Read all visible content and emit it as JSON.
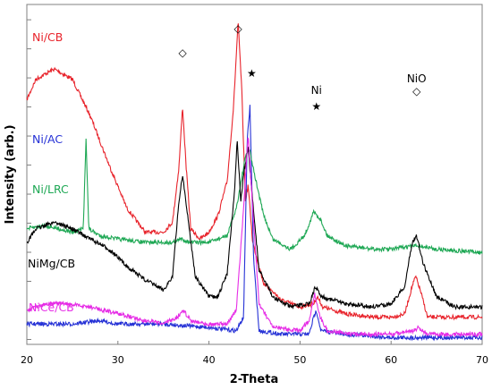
{
  "chart_data": {
    "type": "line",
    "xlabel": "2-Theta",
    "ylabel": "Intensity (arb.)",
    "xlim": [
      20,
      70
    ],
    "xticks": [
      "20",
      "30",
      "40",
      "50",
      "60",
      "70"
    ],
    "y_ticks_labeled": false,
    "legend": "none (labels placed next to each curve)",
    "series": [
      {
        "name": "Ni/CB",
        "color": "#e8242c",
        "points": [
          [
            20,
            0.28
          ],
          [
            21,
            0.22
          ],
          [
            23,
            0.19
          ],
          [
            25,
            0.22
          ],
          [
            27,
            0.33
          ],
          [
            29,
            0.47
          ],
          [
            31,
            0.6
          ],
          [
            33,
            0.67
          ],
          [
            35,
            0.67
          ],
          [
            36,
            0.64
          ],
          [
            36.7,
            0.48
          ],
          [
            37.1,
            0.3
          ],
          [
            37.5,
            0.48
          ],
          [
            38,
            0.66
          ],
          [
            39,
            0.69
          ],
          [
            40,
            0.67
          ],
          [
            41,
            0.62
          ],
          [
            42,
            0.52
          ],
          [
            42.7,
            0.3
          ],
          [
            43.2,
            0.05
          ],
          [
            43.6,
            0.25
          ],
          [
            44.0,
            0.58
          ],
          [
            44.3,
            0.53
          ],
          [
            44.8,
            0.7
          ],
          [
            46,
            0.82
          ],
          [
            48,
            0.87
          ],
          [
            50,
            0.89
          ],
          [
            51.5,
            0.88
          ],
          [
            51.9,
            0.86
          ],
          [
            52.5,
            0.89
          ],
          [
            55,
            0.91
          ],
          [
            58,
            0.92
          ],
          [
            60,
            0.92
          ],
          [
            61.5,
            0.91
          ],
          [
            62.3,
            0.83
          ],
          [
            62.7,
            0.8
          ],
          [
            63.2,
            0.84
          ],
          [
            64,
            0.92
          ],
          [
            67,
            0.92
          ],
          [
            70,
            0.92
          ]
        ]
      },
      {
        "name": "Ni/AC",
        "color": "#2632d6",
        "points": [
          [
            20,
            0.94
          ],
          [
            25,
            0.94
          ],
          [
            28,
            0.93
          ],
          [
            30,
            0.94
          ],
          [
            35,
            0.94
          ],
          [
            40,
            0.95
          ],
          [
            43,
            0.96
          ],
          [
            43.8,
            0.92
          ],
          [
            44.2,
            0.4
          ],
          [
            44.5,
            0.3
          ],
          [
            44.9,
            0.75
          ],
          [
            45.5,
            0.96
          ],
          [
            48,
            0.97
          ],
          [
            51,
            0.97
          ],
          [
            51.5,
            0.92
          ],
          [
            51.8,
            0.9
          ],
          [
            52.3,
            0.96
          ],
          [
            55,
            0.97
          ],
          [
            60,
            0.98
          ],
          [
            65,
            0.98
          ],
          [
            70,
            0.98
          ]
        ]
      },
      {
        "name": "Ni/LRC",
        "color": "#1fa855",
        "points": [
          [
            20,
            0.66
          ],
          [
            22,
            0.65
          ],
          [
            25,
            0.67
          ],
          [
            26.2,
            0.66
          ],
          [
            26.5,
            0.39
          ],
          [
            26.8,
            0.66
          ],
          [
            28,
            0.68
          ],
          [
            30,
            0.69
          ],
          [
            33,
            0.7
          ],
          [
            36,
            0.7
          ],
          [
            37,
            0.69
          ],
          [
            38,
            0.7
          ],
          [
            40,
            0.7
          ],
          [
            42,
            0.68
          ],
          [
            43,
            0.6
          ],
          [
            44,
            0.45
          ],
          [
            44.4,
            0.42
          ],
          [
            45,
            0.5
          ],
          [
            46,
            0.62
          ],
          [
            47,
            0.69
          ],
          [
            49,
            0.72
          ],
          [
            50.5,
            0.68
          ],
          [
            51.5,
            0.61
          ],
          [
            52.2,
            0.63
          ],
          [
            53,
            0.68
          ],
          [
            55,
            0.71
          ],
          [
            58,
            0.72
          ],
          [
            60,
            0.72
          ],
          [
            62.5,
            0.71
          ],
          [
            63,
            0.71
          ],
          [
            65,
            0.72
          ],
          [
            70,
            0.73
          ]
        ]
      },
      {
        "name": "NiMg/CB",
        "color": "#000000",
        "points": [
          [
            20,
            0.7
          ],
          [
            21,
            0.66
          ],
          [
            23,
            0.64
          ],
          [
            25,
            0.66
          ],
          [
            27,
            0.69
          ],
          [
            29,
            0.72
          ],
          [
            31,
            0.77
          ],
          [
            33,
            0.81
          ],
          [
            35,
            0.84
          ],
          [
            36,
            0.8
          ],
          [
            36.7,
            0.58
          ],
          [
            37.1,
            0.5
          ],
          [
            37.6,
            0.61
          ],
          [
            38.5,
            0.8
          ],
          [
            40,
            0.86
          ],
          [
            41,
            0.86
          ],
          [
            42,
            0.79
          ],
          [
            42.8,
            0.55
          ],
          [
            43.1,
            0.4
          ],
          [
            43.5,
            0.58
          ],
          [
            43.8,
            0.5
          ],
          [
            44.3,
            0.42
          ],
          [
            44.8,
            0.58
          ],
          [
            45.5,
            0.78
          ],
          [
            47,
            0.86
          ],
          [
            49,
            0.89
          ],
          [
            51,
            0.88
          ],
          [
            51.7,
            0.83
          ],
          [
            52.4,
            0.86
          ],
          [
            55,
            0.88
          ],
          [
            58,
            0.89
          ],
          [
            60,
            0.88
          ],
          [
            61.5,
            0.83
          ],
          [
            62.3,
            0.7
          ],
          [
            62.8,
            0.68
          ],
          [
            63.5,
            0.76
          ],
          [
            65,
            0.86
          ],
          [
            67,
            0.89
          ],
          [
            70,
            0.89
          ]
        ]
      },
      {
        "name": "NiCe/CB",
        "color": "#e62de6",
        "points": [
          [
            20,
            0.9
          ],
          [
            22,
            0.88
          ],
          [
            24,
            0.88
          ],
          [
            27,
            0.89
          ],
          [
            30,
            0.91
          ],
          [
            33,
            0.93
          ],
          [
            35,
            0.94
          ],
          [
            36.5,
            0.92
          ],
          [
            37.2,
            0.9
          ],
          [
            38,
            0.93
          ],
          [
            40,
            0.94
          ],
          [
            42,
            0.94
          ],
          [
            43,
            0.9
          ],
          [
            43.8,
            0.6
          ],
          [
            44.3,
            0.38
          ],
          [
            44.8,
            0.6
          ],
          [
            45.5,
            0.88
          ],
          [
            47,
            0.95
          ],
          [
            50,
            0.96
          ],
          [
            51,
            0.93
          ],
          [
            51.6,
            0.85
          ],
          [
            52.2,
            0.92
          ],
          [
            53,
            0.96
          ],
          [
            56,
            0.97
          ],
          [
            60,
            0.97
          ],
          [
            62.5,
            0.96
          ],
          [
            63,
            0.95
          ],
          [
            64,
            0.97
          ],
          [
            70,
            0.97
          ]
        ]
      }
    ],
    "annotations": [
      {
        "text": "◇",
        "x": 37.1,
        "series": "Ni/CB"
      },
      {
        "text": "◇",
        "x": 43.2,
        "series": "Ni/CB"
      },
      {
        "text": "★",
        "x": 44.5,
        "series": "Ni/CB"
      },
      {
        "text": "Ni",
        "x": 51.8,
        "series": "Ni/CB"
      },
      {
        "text": "★",
        "x": 51.8,
        "series": "Ni/CB"
      },
      {
        "text": "NiO",
        "x": 62.8,
        "series": "Ni/CB"
      },
      {
        "text": "◇",
        "x": 62.8,
        "series": "Ni/CB"
      }
    ]
  }
}
